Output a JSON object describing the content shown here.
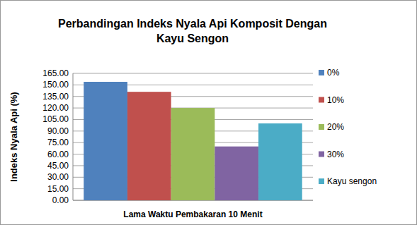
{
  "chart_data": {
    "type": "bar",
    "title": "Perbandingan Indeks Nyala Api Komposit Dengan Kayu Sengon",
    "ylabel": "Indeks Nyala Api (%)",
    "categories": [
      "Lama Waktu Pembakaran 10 Menit"
    ],
    "series": [
      {
        "name": "0%",
        "color": "#4f81bd",
        "values": [
          154
        ]
      },
      {
        "name": "10%",
        "color": "#c0504d",
        "values": [
          141
        ]
      },
      {
        "name": "20%",
        "color": "#9bbb59",
        "values": [
          120
        ]
      },
      {
        "name": "30%",
        "color": "#8064a2",
        "values": [
          70
        ]
      },
      {
        "name": "Kayu sengon",
        "color": "#4bacc6",
        "values": [
          100
        ]
      }
    ],
    "ylim": [
      0,
      165
    ],
    "yticks": [
      {
        "value": 0,
        "label": "0.00"
      },
      {
        "value": 15,
        "label": "15.00"
      },
      {
        "value": 30,
        "label": "30.00"
      },
      {
        "value": 45,
        "label": "45.00"
      },
      {
        "value": 60,
        "label": "60.00"
      },
      {
        "value": 75,
        "label": "75.00"
      },
      {
        "value": 90,
        "label": "90.00"
      },
      {
        "value": 105,
        "label": "105.00"
      },
      {
        "value": 120,
        "label": "120.00"
      },
      {
        "value": 135,
        "label": "135.00"
      },
      {
        "value": 150,
        "label": "150.00"
      },
      {
        "value": 165,
        "label": "165.00"
      }
    ],
    "grid": true,
    "legend": "right"
  }
}
